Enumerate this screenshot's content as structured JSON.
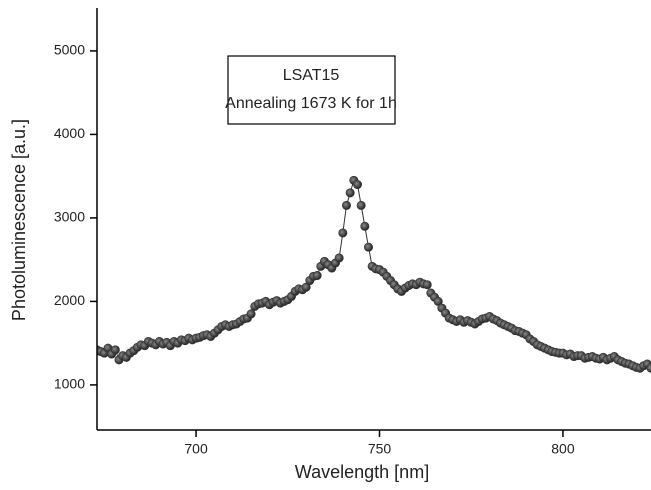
{
  "chart_data": {
    "type": "scatter",
    "x_label": "Wavelength [nm]",
    "y_label": "Photoluminescence [a.u.]",
    "annotation": [
      "LSAT15",
      "Annealing 1673 K for 1h"
    ],
    "xlim": [
      673,
      824
    ],
    "ylim": [
      460,
      5490
    ],
    "xticks": [
      700,
      750,
      800
    ],
    "yticks": [
      1000,
      2000,
      3000,
      4000,
      5000
    ],
    "series": [
      {
        "color": "#333333",
        "x": [
          673,
          674,
          675,
          676,
          677,
          678,
          679,
          680,
          681,
          682,
          683,
          684,
          685,
          686,
          687,
          688,
          689,
          690,
          691,
          692,
          693,
          694,
          695,
          696,
          697,
          698,
          699,
          700,
          701,
          702,
          703,
          704,
          705,
          706,
          707,
          708,
          709,
          710,
          711,
          712,
          713,
          714,
          715,
          716,
          717,
          718,
          719,
          720,
          721,
          722,
          723,
          724,
          725,
          726,
          727,
          728,
          729,
          730,
          731,
          732,
          733,
          734,
          735,
          736,
          737,
          738,
          739,
          740,
          741,
          742,
          743,
          744,
          745,
          746,
          747,
          748,
          749,
          750,
          751,
          752,
          753,
          754,
          755,
          756,
          757,
          758,
          759,
          760,
          761,
          762,
          763,
          764,
          765,
          766,
          767,
          768,
          769,
          770,
          771,
          772,
          773,
          774,
          775,
          776,
          777,
          778,
          779,
          780,
          781,
          782,
          783,
          784,
          785,
          786,
          787,
          788,
          789,
          790,
          791,
          792,
          793,
          794,
          795,
          796,
          797,
          798,
          799,
          800,
          801,
          802,
          803,
          804,
          805,
          806,
          807,
          808,
          809,
          810,
          811,
          812,
          813,
          814,
          815,
          816,
          817,
          818,
          819,
          820,
          821,
          822,
          823,
          824
        ],
        "values": [
          1420,
          1400,
          1380,
          1440,
          1370,
          1420,
          1300,
          1350,
          1330,
          1380,
          1410,
          1450,
          1480,
          1470,
          1520,
          1500,
          1480,
          1520,
          1490,
          1510,
          1470,
          1520,
          1500,
          1540,
          1530,
          1560,
          1540,
          1560,
          1570,
          1590,
          1600,
          1580,
          1620,
          1660,
          1700,
          1720,
          1700,
          1720,
          1730,
          1760,
          1790,
          1800,
          1850,
          1940,
          1970,
          1980,
          2000,
          1960,
          1990,
          2010,
          1980,
          2000,
          2020,
          2060,
          2120,
          2150,
          2140,
          2170,
          2250,
          2300,
          2310,
          2420,
          2480,
          2440,
          2400,
          2460,
          2520,
          2820,
          3150,
          3300,
          3450,
          3400,
          3150,
          2900,
          2650,
          2420,
          2390,
          2380,
          2350,
          2300,
          2250,
          2200,
          2150,
          2120,
          2160,
          2190,
          2210,
          2200,
          2230,
          2210,
          2200,
          2100,
          2050,
          2000,
          1920,
          1860,
          1800,
          1780,
          1760,
          1780,
          1750,
          1770,
          1750,
          1730,
          1760,
          1790,
          1800,
          1820,
          1790,
          1770,
          1740,
          1720,
          1700,
          1680,
          1650,
          1640,
          1620,
          1600,
          1550,
          1520,
          1480,
          1460,
          1440,
          1420,
          1400,
          1390,
          1380,
          1380,
          1360,
          1370,
          1340,
          1350,
          1350,
          1320,
          1330,
          1340,
          1320,
          1310,
          1330,
          1300,
          1320,
          1340,
          1300,
          1280,
          1260,
          1250,
          1230,
          1210,
          1200,
          1230,
          1250,
          1200
        ]
      }
    ]
  }
}
